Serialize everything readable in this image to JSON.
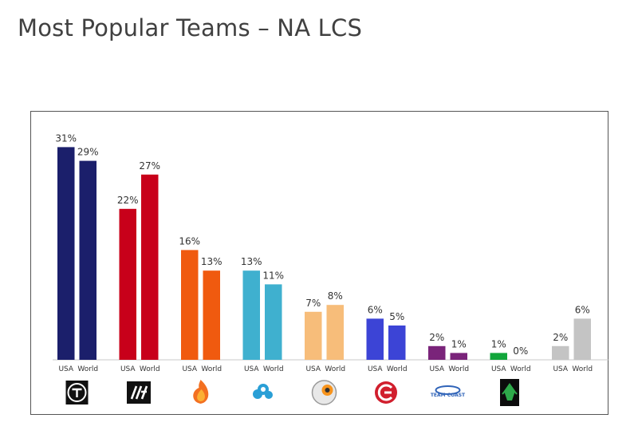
{
  "page": {
    "title": "Most Popular Teams – NA LCS"
  },
  "chart_data": {
    "type": "bar",
    "title": "Most Popular Teams – NA LCS",
    "xlabel": "",
    "ylabel": "",
    "ylim": [
      0,
      35
    ],
    "grid": false,
    "legend": "none",
    "tick_labels": [
      "USA",
      "World"
    ],
    "groups": [
      {
        "logo": "tsm-logo",
        "values": [
          31,
          29
        ],
        "labels": [
          "31%",
          "29%"
        ],
        "color": "#1b1f6b"
      },
      {
        "logo": "clg-logo",
        "values": [
          22,
          27
        ],
        "labels": [
          "22%",
          "27%"
        ],
        "color": "#c8001a"
      },
      {
        "logo": "flame-logo",
        "values": [
          16,
          13
        ],
        "labels": [
          "16%",
          "13%"
        ],
        "color": "#f05a0f"
      },
      {
        "logo": "cloud9-logo",
        "values": [
          13,
          11
        ],
        "labels": [
          "13%",
          "11%"
        ],
        "color": "#3fb0cf"
      },
      {
        "logo": "dignitas-logo",
        "values": [
          7,
          8
        ],
        "labels": [
          "7%",
          "8%"
        ],
        "color": "#f7bd7a"
      },
      {
        "logo": "coast-red-logo",
        "values": [
          6,
          5
        ],
        "labels": [
          "6%",
          "5%"
        ],
        "color": "#3c44d6"
      },
      {
        "logo": "team-coast-logo",
        "values": [
          2,
          1
        ],
        "labels": [
          "2%",
          "1%"
        ],
        "color": "#7a247a",
        "logo_text": "TEAM COAST"
      },
      {
        "logo": "green-mascot-logo",
        "values": [
          1,
          0
        ],
        "labels": [
          "1%",
          "0%"
        ],
        "color": "#12a63b"
      },
      {
        "logo": "none",
        "values": [
          2,
          6
        ],
        "labels": [
          "2%",
          "6%"
        ],
        "color": "#c4c4c4"
      }
    ]
  }
}
